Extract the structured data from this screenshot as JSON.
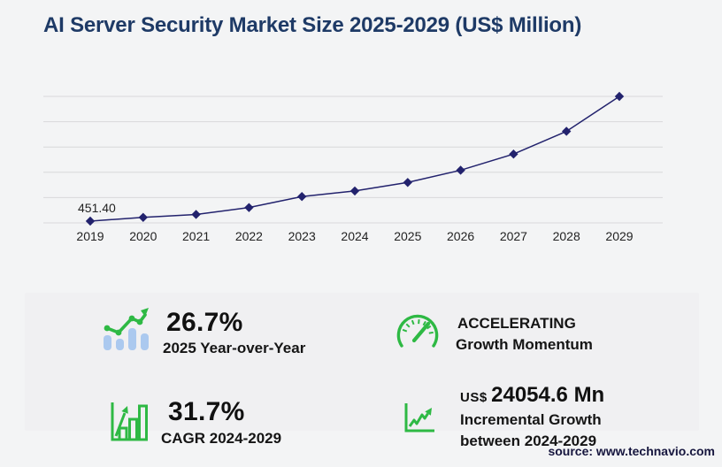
{
  "page": {
    "title": "AI Server Security Market Size 2025-2029 (US$ Million)",
    "source": "source: www.technavio.com"
  },
  "chart_data": {
    "type": "line",
    "title": "AI Server Security Market Size 2025-2029 (US$ Million)",
    "x": [
      "2019",
      "2020",
      "2021",
      "2022",
      "2023",
      "2024",
      "2025",
      "2026",
      "2027",
      "2028",
      "2029"
    ],
    "values": [
      451.4,
      1400,
      2150,
      3900,
      6700,
      8120.7,
      10288.9,
      13400,
      17500,
      23300,
      32175.3
    ],
    "first_point_label": "451.40",
    "ylim": [
      0,
      32175.3
    ],
    "gridlines": 6,
    "grid": "horizontal-only",
    "legend": "none",
    "marker": "diamond",
    "line_color": "#22226d",
    "gridline_color": "#d8d8da",
    "tick_label_color": "#222222"
  },
  "stats": {
    "yoy": {
      "icon": "bar-trend-icon",
      "value": "26.7%",
      "label": "2025 Year-over-Year"
    },
    "momentum": {
      "icon": "gauge-icon",
      "line1": "ACCELERATING",
      "line2": "Growth Momentum"
    },
    "cagr": {
      "icon": "growth-bars-icon",
      "value": "31.7%",
      "label": "CAGR 2024-2029"
    },
    "incremental": {
      "icon": "axes-zigzag-icon",
      "prefix": "US$",
      "value": "24054.6 Mn",
      "line1": "Incremental Growth",
      "line2": "between 2024-2029"
    }
  },
  "colors": {
    "accent_green": "#2eb944",
    "bar_blue": "#abc9ef",
    "title_navy": "#1e3a66",
    "line_navy": "#22226d",
    "background": "#f3f4f5",
    "panel": "#f0f0f2"
  }
}
